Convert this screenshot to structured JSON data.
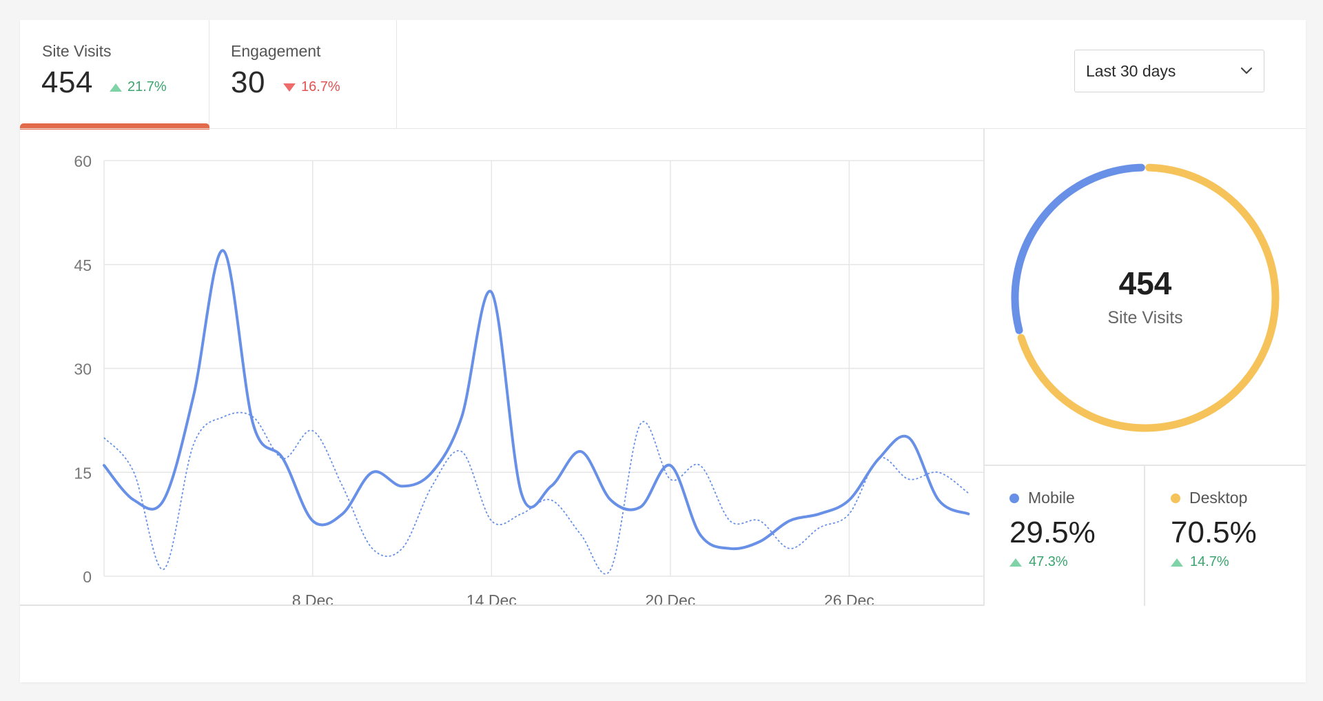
{
  "tabs": [
    {
      "label": "Site Visits",
      "value": "454",
      "delta": "21.7%",
      "direction": "up"
    },
    {
      "label": "Engagement",
      "value": "30",
      "delta": "16.7%",
      "direction": "down"
    }
  ],
  "date_range": {
    "selected": "Last 30 days"
  },
  "colors": {
    "primary_line": "#6790e6",
    "compare_line": "#6790e6",
    "mobile": "#6790e6",
    "desktop": "#f6c35a",
    "active_tab": "#e2694a",
    "positive": "#3aa56e",
    "negative": "#e35151"
  },
  "donut": {
    "value": "454",
    "label": "Site Visits"
  },
  "segments": [
    {
      "name": "Mobile",
      "value": "29.5%",
      "delta": "47.3%"
    },
    {
      "name": "Desktop",
      "value": "70.5%",
      "delta": "14.7%"
    }
  ],
  "chart_data": [
    {
      "type": "line",
      "x": [
        1,
        2,
        3,
        4,
        5,
        6,
        7,
        8,
        9,
        10,
        11,
        12,
        13,
        14,
        15,
        16,
        17,
        18,
        19,
        20,
        21,
        22,
        23,
        24,
        25,
        26,
        27,
        28,
        29,
        30
      ],
      "x_ticks": [
        {
          "x": 8,
          "label": "8 Dec"
        },
        {
          "x": 14,
          "label": "14 Dec"
        },
        {
          "x": 20,
          "label": "20 Dec"
        },
        {
          "x": 26,
          "label": "26 Dec"
        }
      ],
      "y_ticks": [
        0,
        15,
        30,
        45,
        60
      ],
      "ylim": [
        0,
        60
      ],
      "grid": true,
      "series": [
        {
          "style": "solid",
          "values": [
            16,
            11,
            11,
            26,
            47,
            22,
            17,
            8,
            9,
            15,
            13,
            15,
            23,
            41,
            12,
            13,
            18,
            11,
            10,
            16,
            6,
            4,
            5,
            8,
            9,
            11,
            17,
            20,
            11,
            9
          ]
        },
        {
          "style": "dotted",
          "values": [
            20,
            15,
            1,
            19,
            23,
            23,
            17,
            21,
            13,
            4,
            4,
            13,
            18,
            8,
            9,
            11,
            6,
            1,
            22,
            14,
            16,
            8,
            8,
            4,
            7,
            9,
            17,
            14,
            15,
            12
          ]
        }
      ]
    },
    {
      "type": "pie",
      "categories": [
        "Mobile",
        "Desktop"
      ],
      "values": [
        29.5,
        70.5
      ]
    }
  ]
}
